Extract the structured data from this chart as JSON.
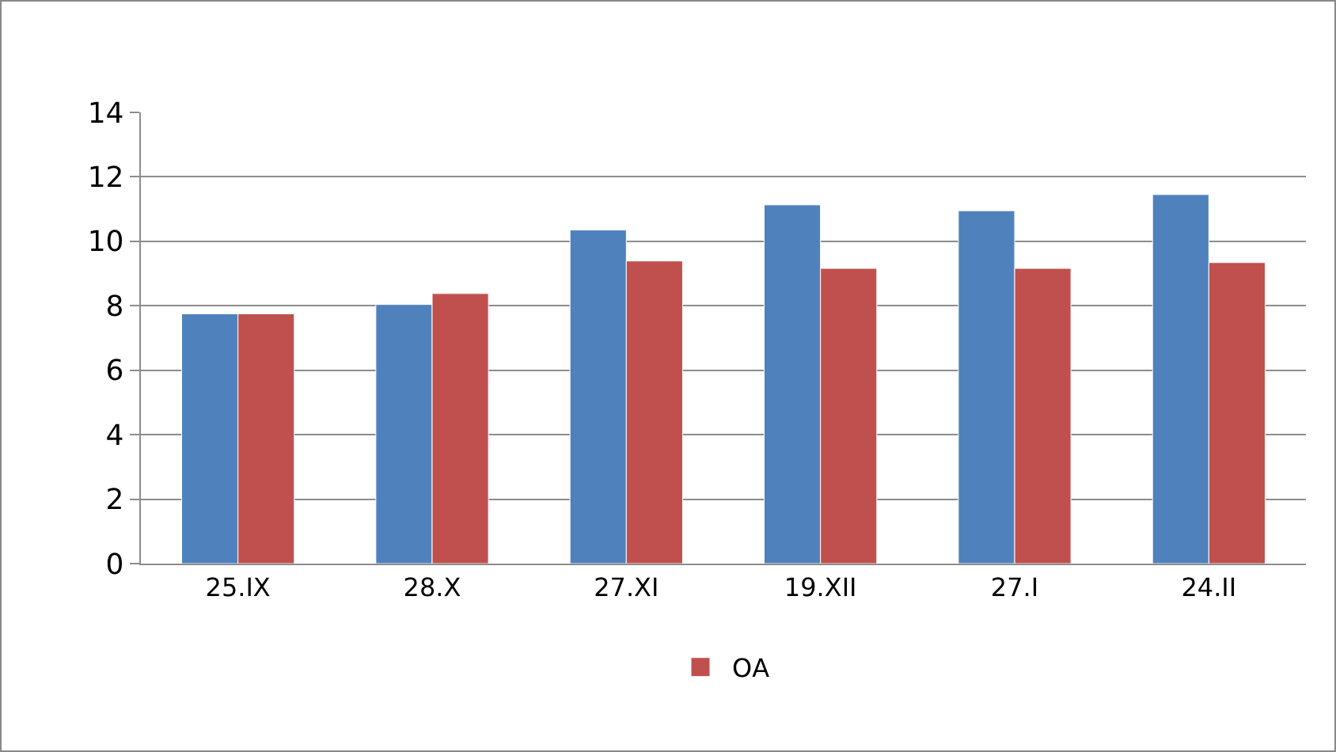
{
  "chart_data": {
    "type": "bar",
    "categories": [
      "25.IX",
      "28.X",
      "27.XI",
      "19.XII",
      "27.I",
      "24.II"
    ],
    "series": [
      {
        "color": "#4f81bd",
        "values": [
          7.75,
          8.04,
          10.35,
          11.13,
          10.95,
          11.45
        ]
      },
      {
        "name": "ОА",
        "color": "#c0504d",
        "values": [
          7.75,
          8.38,
          9.39,
          9.16,
          9.16,
          9.34
        ]
      }
    ],
    "ylim": [
      0,
      14
    ],
    "yticks": [
      0,
      2,
      4,
      6,
      8,
      10,
      12,
      14
    ],
    "grid": "y",
    "legend": "bottom"
  }
}
